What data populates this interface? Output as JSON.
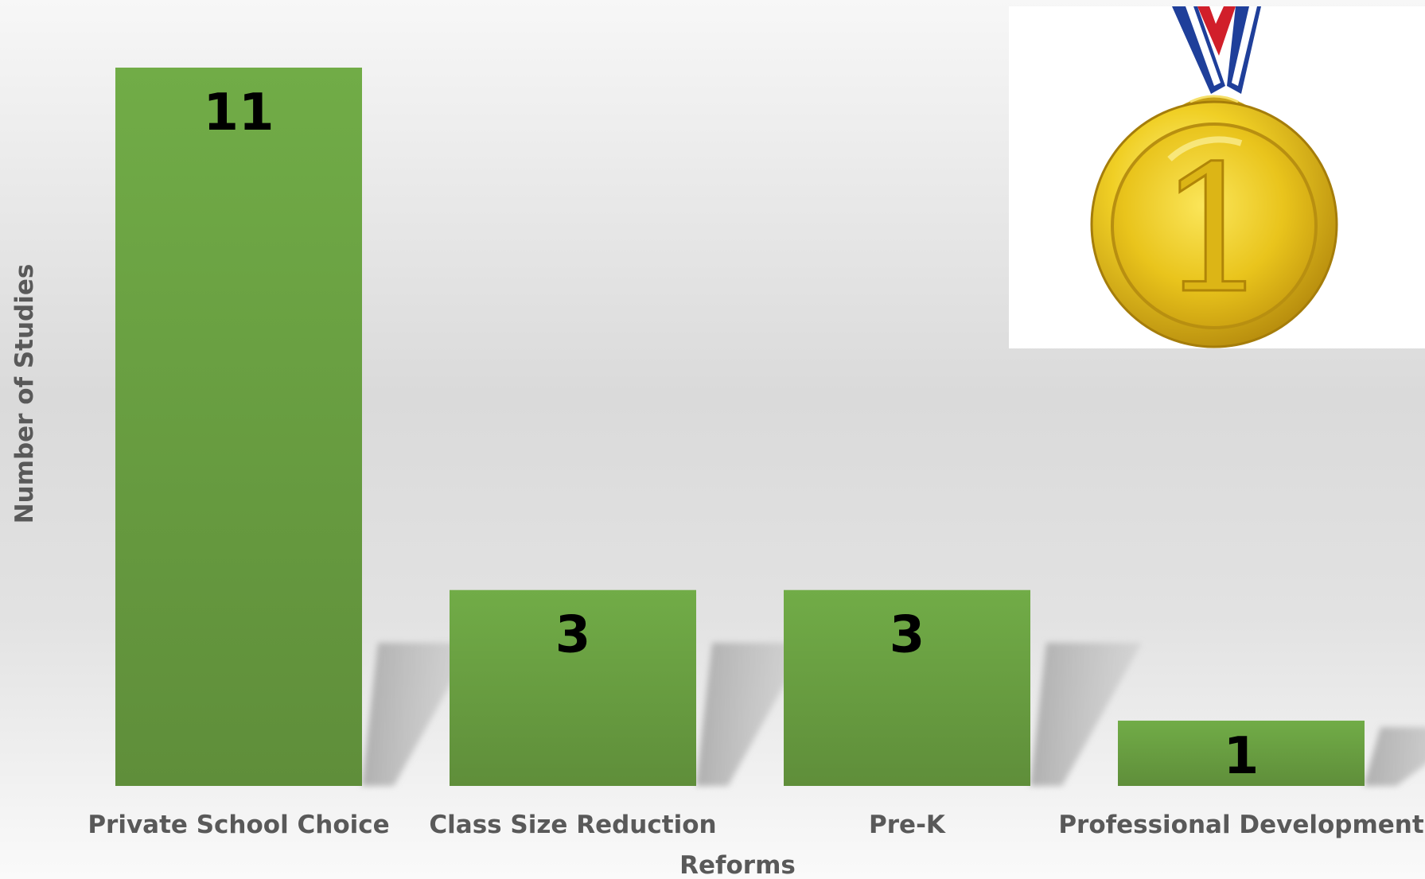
{
  "chart_data": {
    "type": "bar",
    "title": "",
    "categories": [
      "Private School Choice",
      "Class Size Reduction",
      "Pre-K",
      "Professional Development"
    ],
    "values": [
      11,
      3,
      3,
      1
    ],
    "xlabel": "Reforms",
    "ylabel": "Number of Studies",
    "ylim": [
      0,
      11
    ],
    "grid": false,
    "legend": "none",
    "bar_color": "#6a9f41",
    "bar_color_top": "#71ac47",
    "bar_color_bottom": "#5f8e3a",
    "label_color": "#595959",
    "value_label_color": "#000000"
  },
  "decoration": {
    "medal_icon": "gold-medal-icon",
    "medal_numeral": "1",
    "medal_color": "#e8c21a",
    "ribbon_colors": [
      "#1f3f9a",
      "#ffffff",
      "#d11f2a"
    ]
  }
}
